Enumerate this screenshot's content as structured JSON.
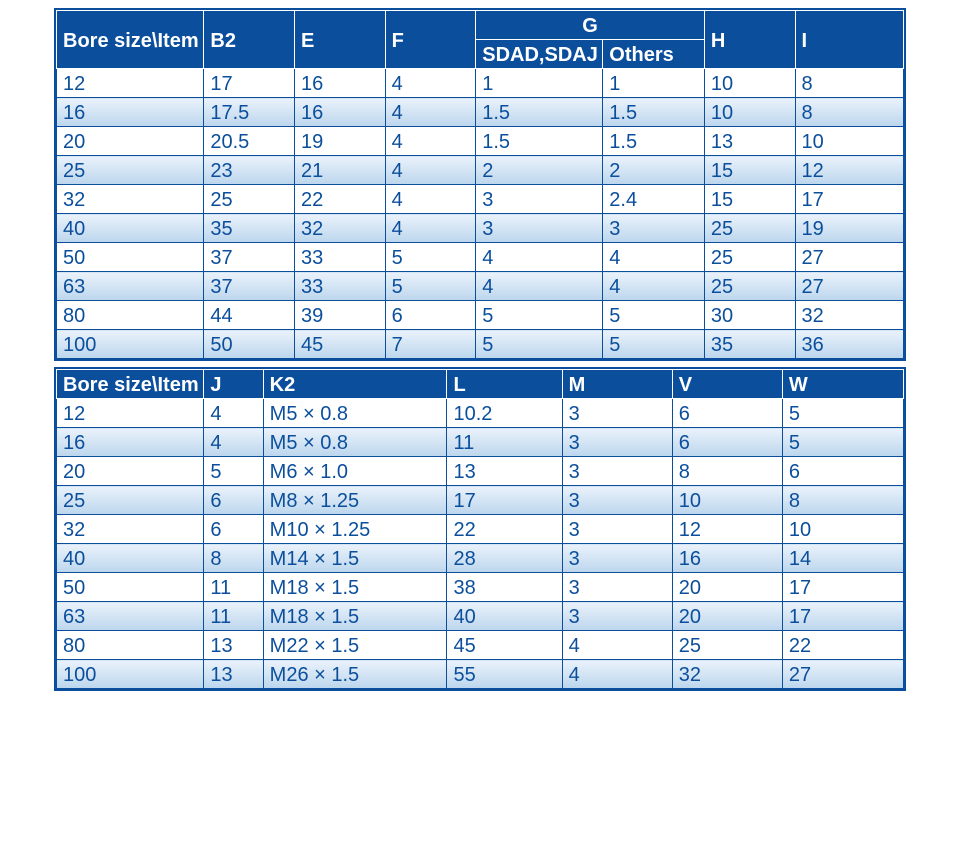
{
  "table1": {
    "type": "table",
    "header_bg": "#0b4f9c",
    "header_fg": "#ffffff",
    "cell_fg": "#0b4f9c",
    "alt_row_gradient": [
      "#eaf2fb",
      "#bcd6ed"
    ],
    "border_color": "#0b4f9c",
    "font_size": 20,
    "columns": {
      "bore": "Bore size\\Item",
      "B2": "B2",
      "E": "E",
      "F": "F",
      "G": "G",
      "G_sdad": "SDAD,SDAJ",
      "G_others": "Others",
      "H": "H",
      "I": "I"
    },
    "rows": [
      {
        "bore": "12",
        "B2": "17",
        "E": "16",
        "F": "4",
        "G1": "1",
        "G2": "1",
        "H": "10",
        "I": "8"
      },
      {
        "bore": "16",
        "B2": "17.5",
        "E": "16",
        "F": "4",
        "G1": "1.5",
        "G2": "1.5",
        "H": "10",
        "I": "8"
      },
      {
        "bore": "20",
        "B2": "20.5",
        "E": "19",
        "F": "4",
        "G1": "1.5",
        "G2": "1.5",
        "H": "13",
        "I": "10"
      },
      {
        "bore": "25",
        "B2": "23",
        "E": "21",
        "F": "4",
        "G1": "2",
        "G2": "2",
        "H": "15",
        "I": "12"
      },
      {
        "bore": "32",
        "B2": "25",
        "E": "22",
        "F": "4",
        "G1": "3",
        "G2": "2.4",
        "H": "15",
        "I": "17"
      },
      {
        "bore": "40",
        "B2": "35",
        "E": "32",
        "F": "4",
        "G1": "3",
        "G2": "3",
        "H": "25",
        "I": "19"
      },
      {
        "bore": "50",
        "B2": "37",
        "E": "33",
        "F": "5",
        "G1": "4",
        "G2": "4",
        "H": "25",
        "I": "27"
      },
      {
        "bore": "63",
        "B2": "37",
        "E": "33",
        "F": "5",
        "G1": "4",
        "G2": "4",
        "H": "25",
        "I": "27"
      },
      {
        "bore": "80",
        "B2": "44",
        "E": "39",
        "F": "6",
        "G1": "5",
        "G2": "5",
        "H": "30",
        "I": "32"
      },
      {
        "bore": "100",
        "B2": "50",
        "E": "45",
        "F": "7",
        "G1": "5",
        "G2": "5",
        "H": "35",
        "I": "36"
      }
    ]
  },
  "table2": {
    "type": "table",
    "header_bg": "#0b4f9c",
    "header_fg": "#ffffff",
    "cell_fg": "#0b4f9c",
    "alt_row_gradient": [
      "#eaf2fb",
      "#bcd6ed"
    ],
    "border_color": "#0b4f9c",
    "font_size": 20,
    "columns": {
      "bore": "Bore size\\Item",
      "J": "J",
      "K2": "K2",
      "L": "L",
      "M": "M",
      "V": "V",
      "W": "W"
    },
    "rows": [
      {
        "bore": "12",
        "J": "4",
        "K2": "M5 × 0.8",
        "L": "10.2",
        "M": "3",
        "V": "6",
        "W": "5"
      },
      {
        "bore": "16",
        "J": "4",
        "K2": "M5 × 0.8",
        "L": "11",
        "M": "3",
        "V": "6",
        "W": "5"
      },
      {
        "bore": "20",
        "J": "5",
        "K2": "M6 × 1.0",
        "L": "13",
        "M": "3",
        "V": "8",
        "W": "6"
      },
      {
        "bore": "25",
        "J": "6",
        "K2": "M8 × 1.25",
        "L": "17",
        "M": "3",
        "V": "10",
        "W": "8"
      },
      {
        "bore": "32",
        "J": "6",
        "K2": "M10 × 1.25",
        "L": "22",
        "M": "3",
        "V": "12",
        "W": "10"
      },
      {
        "bore": "40",
        "J": "8",
        "K2": "M14 × 1.5",
        "L": "28",
        "M": "3",
        "V": "16",
        "W": "14"
      },
      {
        "bore": "50",
        "J": "11",
        "K2": "M18 × 1.5",
        "L": "38",
        "M": "3",
        "V": "20",
        "W": "17"
      },
      {
        "bore": "63",
        "J": "11",
        "K2": "M18 × 1.5",
        "L": "40",
        "M": "3",
        "V": "20",
        "W": "17"
      },
      {
        "bore": "80",
        "J": "13",
        "K2": "M22 × 1.5",
        "L": "45",
        "M": "4",
        "V": "25",
        "W": "22"
      },
      {
        "bore": "100",
        "J": "13",
        "K2": "M26 × 1.5",
        "L": "55",
        "M": "4",
        "V": "32",
        "W": "27"
      }
    ]
  }
}
